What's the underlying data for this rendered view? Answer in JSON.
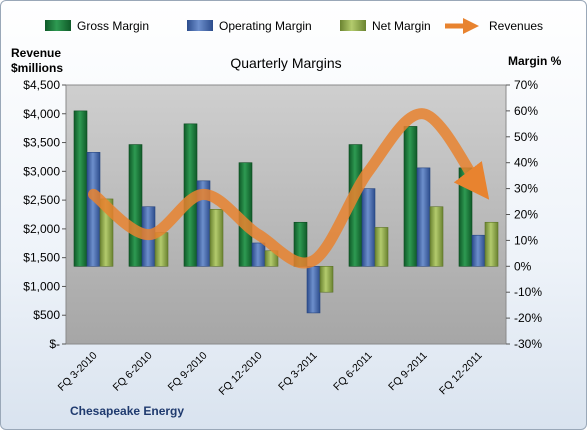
{
  "chart_data": {
    "type": "bar",
    "title": "Quarterly Margins",
    "left_axis_label_line1": "Revenue",
    "left_axis_label_line2": "$millions",
    "right_axis_label": "Margin %",
    "footer": "Chesapeake Energy",
    "categories": [
      "FQ 3-2010",
      "FQ 6-2010",
      "FQ 9-2010",
      "FQ 12-2010",
      "FQ 3-2011",
      "FQ 6-2011",
      "FQ 9-2011",
      "FQ 12-2011"
    ],
    "left_ylim": [
      0,
      4500
    ],
    "left_ticks": [
      0,
      500,
      1000,
      1500,
      2000,
      2500,
      3000,
      3500,
      4000,
      4500
    ],
    "left_tick_labels": [
      "$-",
      "$500",
      "$1,000",
      "$1,500",
      "$2,000",
      "$2,500",
      "$3,000",
      "$3,500",
      "$4,000",
      "$4,500"
    ],
    "right_ylim": [
      -30,
      70
    ],
    "right_ticks": [
      -30,
      -20,
      -10,
      0,
      10,
      20,
      30,
      40,
      50,
      60,
      70
    ],
    "right_tick_labels": [
      "-30%",
      "-20%",
      "-10%",
      "0%",
      "10%",
      "20%",
      "30%",
      "40%",
      "50%",
      "60%",
      "70%"
    ],
    "series": [
      {
        "name": "Gross Margin",
        "axis": "right",
        "kind": "bar",
        "color": "#1e7b3c",
        "values": [
          60,
          47,
          55,
          40,
          17,
          47,
          54,
          38
        ]
      },
      {
        "name": "Operating Margin",
        "axis": "right",
        "kind": "bar",
        "color": "#4a6db0",
        "values": [
          44,
          23,
          33,
          9,
          -18,
          30,
          38,
          12
        ]
      },
      {
        "name": "Net Margin",
        "axis": "right",
        "kind": "bar",
        "color": "#8faa4b",
        "values": [
          26,
          13,
          22,
          6,
          -10,
          15,
          23,
          17
        ]
      },
      {
        "name": "Revenues",
        "axis": "left",
        "kind": "line",
        "color": "#e8832f",
        "values": [
          2600,
          1900,
          2600,
          1900,
          1450,
          3000,
          4000,
          2750
        ]
      }
    ],
    "legend_position": "top",
    "grid": false
  }
}
